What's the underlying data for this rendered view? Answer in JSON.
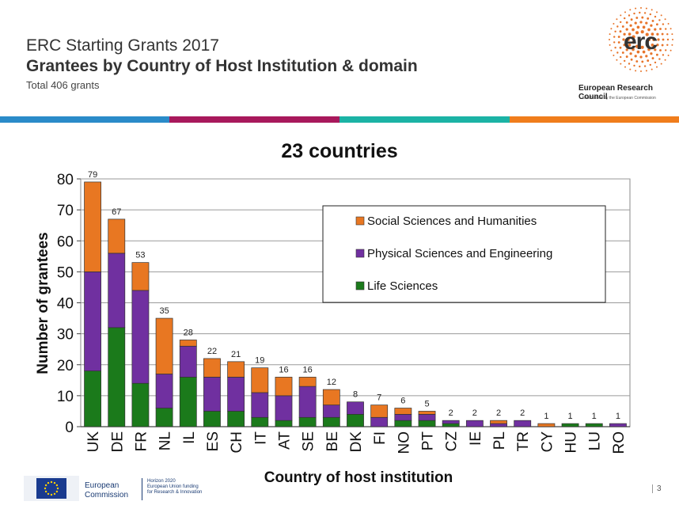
{
  "header": {
    "title": "ERC Starting Grants 2017",
    "subtitle": "Grantees by Country of Host Institution & domain",
    "total": "Total 406 grants"
  },
  "logo": {
    "text": "erc",
    "name": "European Research Council",
    "established": "Established by the European Commission"
  },
  "stripe_colors": [
    "#2a8bc9",
    "#a8195c",
    "#1bb3a5",
    "#f07d1c"
  ],
  "chart_data": {
    "type": "bar",
    "stacked": true,
    "title": "23 countries",
    "xlabel": "Country of host institution",
    "ylabel": "Number of grantees",
    "ylim": [
      0,
      80
    ],
    "yticks": [
      0,
      10,
      20,
      30,
      40,
      50,
      60,
      70,
      80
    ],
    "grid": true,
    "legend_position": "top-right",
    "categories": [
      "UK",
      "DE",
      "FR",
      "NL",
      "IL",
      "ES",
      "CH",
      "IT",
      "AT",
      "SE",
      "BE",
      "DK",
      "FI",
      "NO",
      "PT",
      "CZ",
      "IE",
      "PL",
      "TR",
      "CY",
      "HU",
      "LU",
      "RO"
    ],
    "series": [
      {
        "name": "Life Sciences",
        "color": "#1b7a1b",
        "values": [
          18,
          32,
          14,
          6,
          16,
          5,
          5,
          3,
          2,
          3,
          3,
          4,
          0,
          2,
          2,
          1,
          0,
          0,
          0,
          0,
          1,
          1,
          0
        ]
      },
      {
        "name": "Physical Sciences and Engineering",
        "color": "#7030a0",
        "values": [
          32,
          24,
          30,
          11,
          10,
          11,
          11,
          8,
          8,
          10,
          4,
          4,
          3,
          2,
          2,
          1,
          2,
          1,
          2,
          0,
          0,
          0,
          1
        ]
      },
      {
        "name": "Social Sciences and Humanities",
        "color": "#e87722",
        "values": [
          29,
          11,
          9,
          18,
          2,
          6,
          5,
          8,
          6,
          3,
          5,
          0,
          4,
          2,
          1,
          0,
          0,
          1,
          0,
          1,
          0,
          0,
          0
        ]
      }
    ],
    "totals": [
      79,
      67,
      53,
      35,
      28,
      22,
      21,
      19,
      16,
      16,
      12,
      8,
      7,
      6,
      5,
      2,
      2,
      2,
      2,
      1,
      1,
      1,
      1
    ]
  },
  "footer": {
    "commission": [
      "European",
      "Commission"
    ],
    "horizon": [
      "Horizon 2020",
      "European Union funding",
      "for Research & Innovation"
    ],
    "page": "3"
  }
}
